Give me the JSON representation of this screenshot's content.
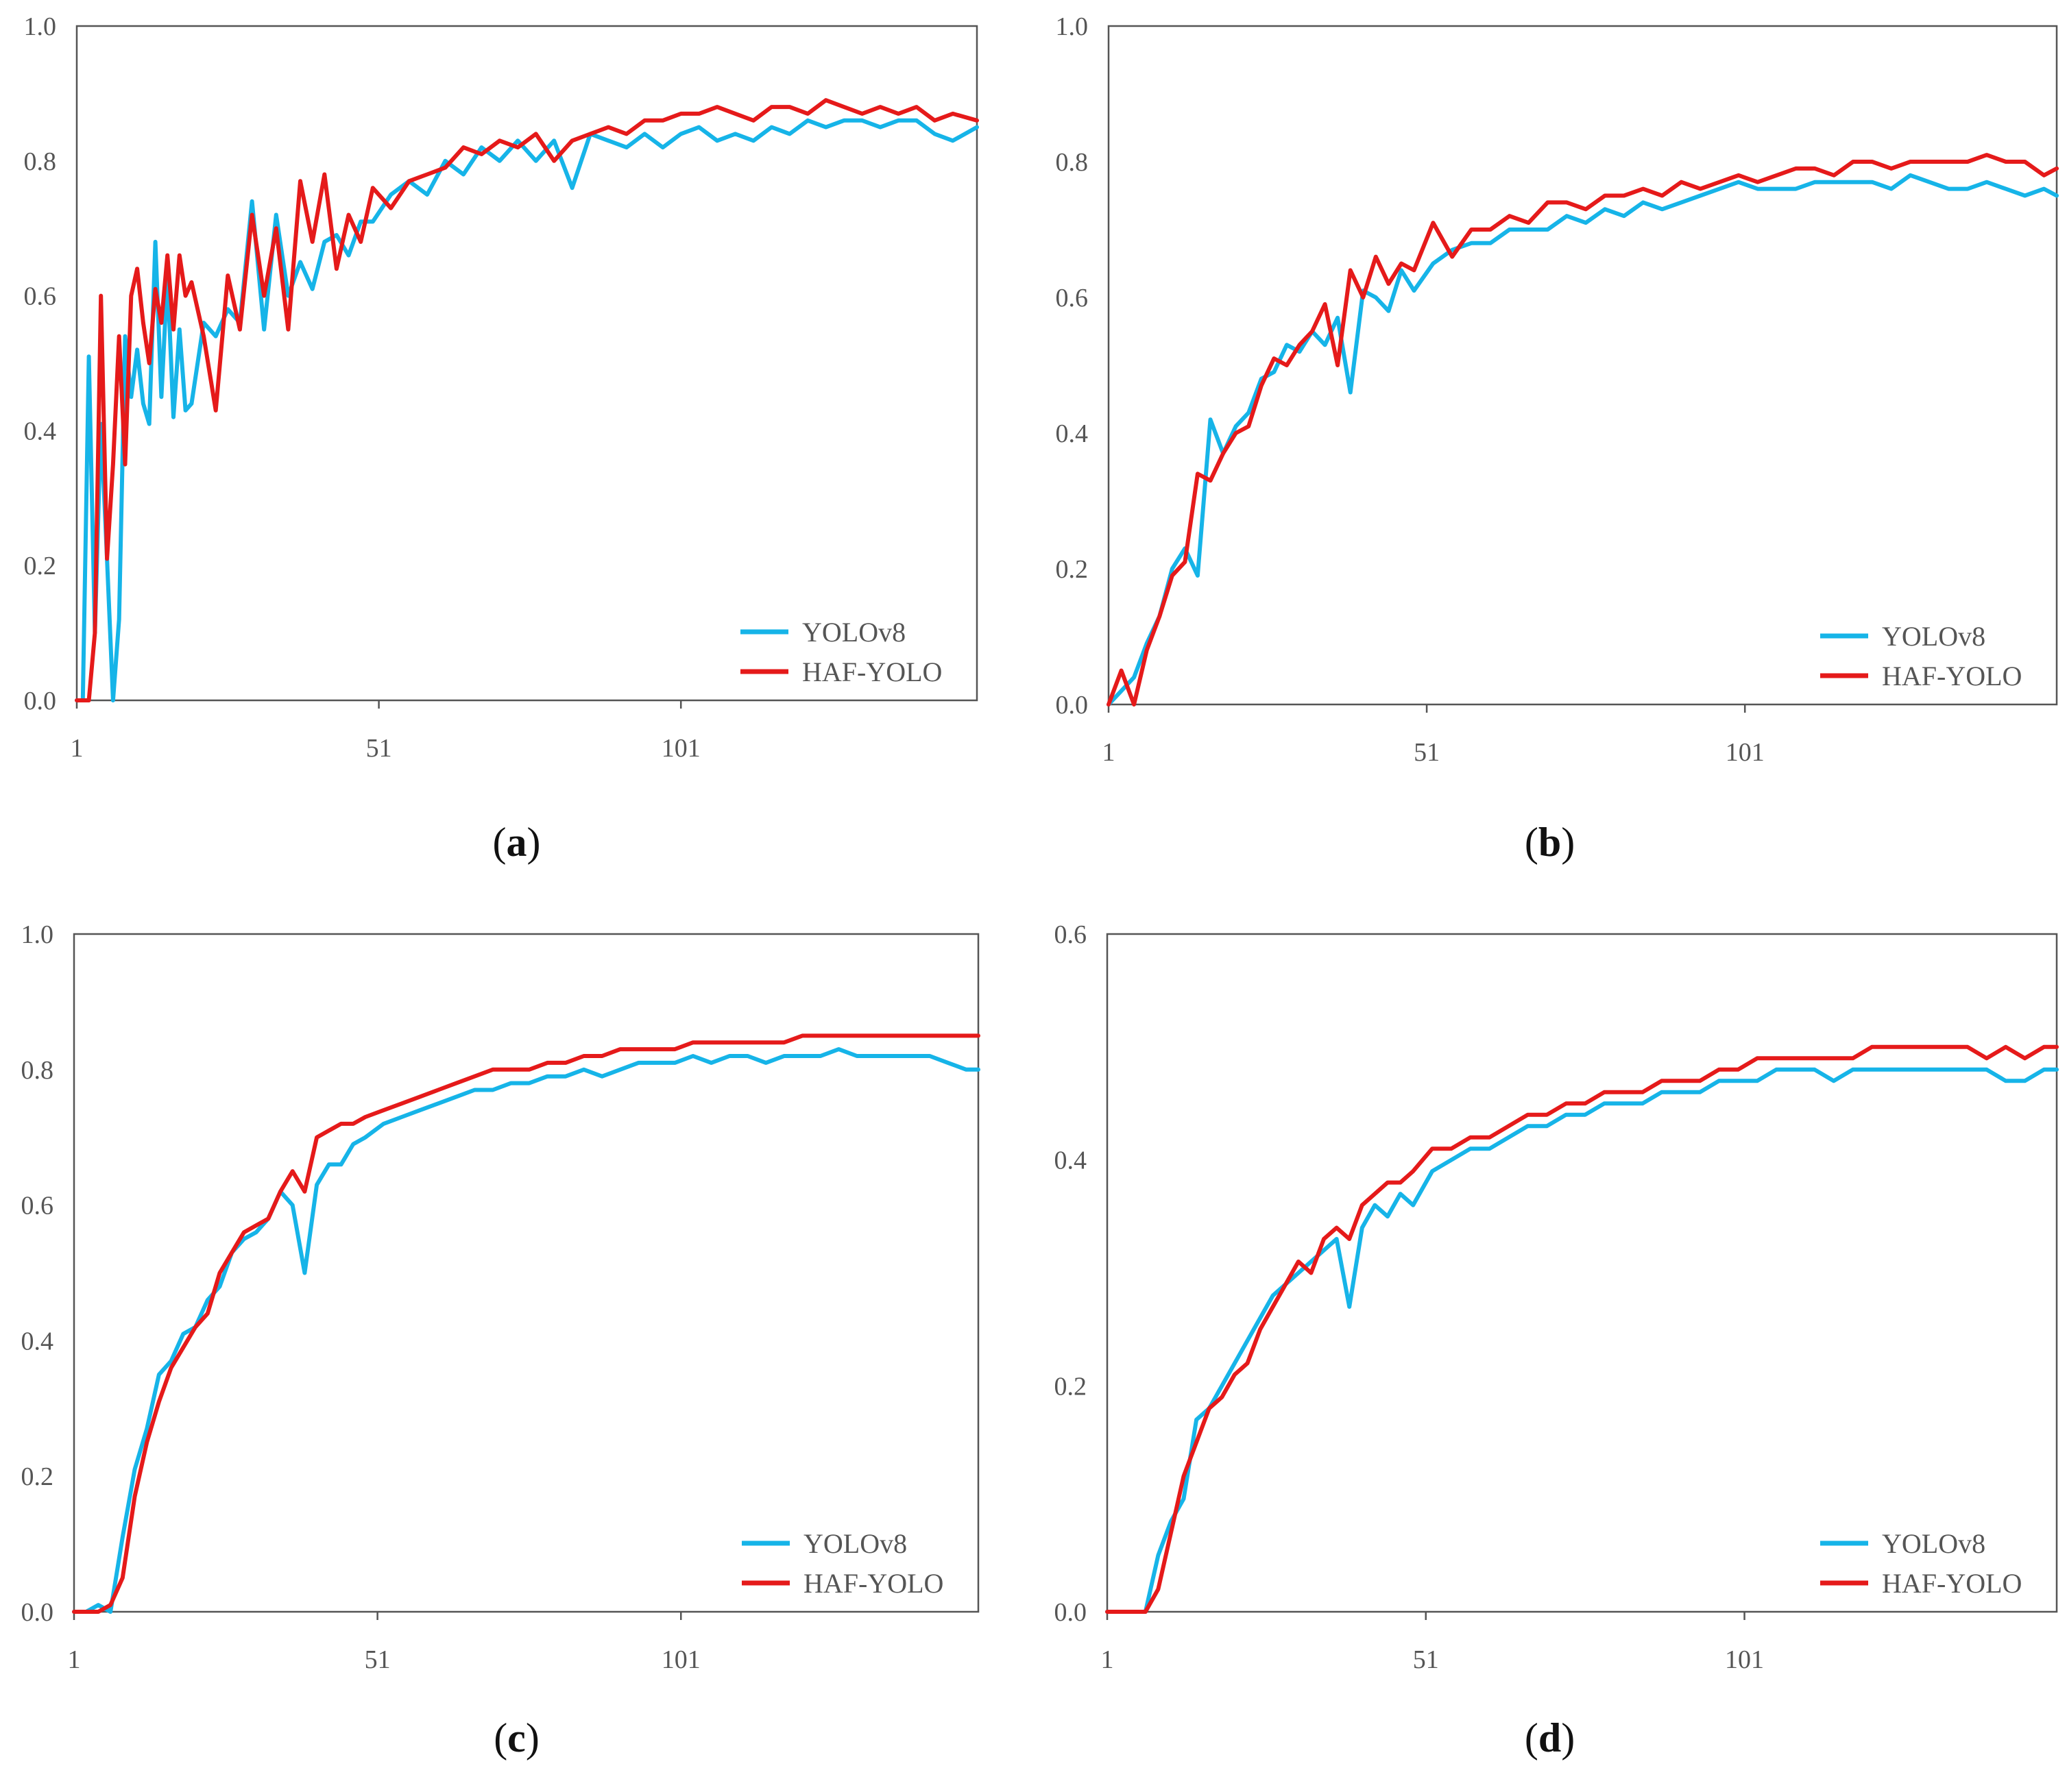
{
  "colors": {
    "yolov8": "#16B4E8",
    "haf_yolo": "#E51A1A",
    "axis": "#555555"
  },
  "chart_data": [
    {
      "id": "a",
      "type": "line",
      "caption_letter": "a",
      "ylim": [
        0,
        1.0
      ],
      "yticks": [
        "0.0",
        "0.2",
        "0.4",
        "0.6",
        "0.8",
        "1.0"
      ],
      "xlim": [
        1,
        150
      ],
      "xticks": [
        "1",
        "51",
        "101"
      ],
      "legend": {
        "position": "bottom-right",
        "labels": [
          "YOLOv8",
          "HAF-YOLO"
        ]
      },
      "series": [
        {
          "name": "YOLOv8",
          "color": "#16B4E8",
          "x": [
            1,
            2,
            3,
            4,
            5,
            6,
            7,
            8,
            9,
            10,
            11,
            12,
            13,
            14,
            15,
            16,
            17,
            18,
            19,
            20,
            22,
            24,
            26,
            28,
            30,
            32,
            34,
            36,
            38,
            40,
            42,
            44,
            46,
            48,
            50,
            53,
            56,
            59,
            62,
            65,
            68,
            71,
            74,
            77,
            80,
            83,
            86,
            89,
            92,
            95,
            98,
            101,
            104,
            107,
            110,
            113,
            116,
            119,
            122,
            125,
            128,
            131,
            134,
            137,
            140,
            143,
            146,
            150
          ],
          "values": [
            0.0,
            0.0,
            0.51,
            0.1,
            0.41,
            0.21,
            0.0,
            0.12,
            0.54,
            0.45,
            0.52,
            0.44,
            0.41,
            0.68,
            0.45,
            0.63,
            0.42,
            0.55,
            0.43,
            0.44,
            0.56,
            0.54,
            0.58,
            0.56,
            0.74,
            0.55,
            0.72,
            0.6,
            0.65,
            0.61,
            0.68,
            0.69,
            0.66,
            0.71,
            0.71,
            0.75,
            0.77,
            0.75,
            0.8,
            0.78,
            0.82,
            0.8,
            0.83,
            0.8,
            0.83,
            0.76,
            0.84,
            0.83,
            0.82,
            0.84,
            0.82,
            0.84,
            0.85,
            0.83,
            0.84,
            0.83,
            0.85,
            0.84,
            0.86,
            0.85,
            0.86,
            0.86,
            0.85,
            0.86,
            0.86,
            0.84,
            0.83,
            0.85
          ]
        },
        {
          "name": "HAF-YOLO",
          "color": "#E51A1A",
          "x": [
            1,
            2,
            3,
            4,
            5,
            6,
            7,
            8,
            9,
            10,
            11,
            12,
            13,
            14,
            15,
            16,
            17,
            18,
            19,
            20,
            22,
            24,
            26,
            28,
            30,
            32,
            34,
            36,
            38,
            40,
            42,
            44,
            46,
            48,
            50,
            53,
            56,
            59,
            62,
            65,
            68,
            71,
            74,
            77,
            80,
            83,
            86,
            89,
            92,
            95,
            98,
            101,
            104,
            107,
            110,
            113,
            116,
            119,
            122,
            125,
            128,
            131,
            134,
            137,
            140,
            143,
            146,
            150
          ],
          "values": [
            0.0,
            0.0,
            0.0,
            0.1,
            0.6,
            0.21,
            0.35,
            0.54,
            0.35,
            0.6,
            0.64,
            0.56,
            0.5,
            0.61,
            0.56,
            0.66,
            0.55,
            0.66,
            0.6,
            0.62,
            0.54,
            0.43,
            0.63,
            0.55,
            0.72,
            0.6,
            0.7,
            0.55,
            0.77,
            0.68,
            0.78,
            0.64,
            0.72,
            0.68,
            0.76,
            0.73,
            0.77,
            0.78,
            0.79,
            0.82,
            0.81,
            0.83,
            0.82,
            0.84,
            0.8,
            0.83,
            0.84,
            0.85,
            0.84,
            0.86,
            0.86,
            0.87,
            0.87,
            0.88,
            0.87,
            0.86,
            0.88,
            0.88,
            0.87,
            0.89,
            0.88,
            0.87,
            0.88,
            0.87,
            0.88,
            0.86,
            0.87,
            0.86
          ]
        }
      ]
    },
    {
      "id": "b",
      "type": "line",
      "caption_letter": "b",
      "ylim": [
        0,
        1.0
      ],
      "yticks": [
        "0.0",
        "0.2",
        "0.4",
        "0.6",
        "0.8",
        "1.0"
      ],
      "xlim": [
        1,
        150
      ],
      "xticks": [
        "1",
        "51",
        "101"
      ],
      "legend": {
        "position": "bottom-right",
        "labels": [
          "YOLOv8",
          "HAF-YOLO"
        ]
      },
      "series": [
        {
          "name": "YOLOv8",
          "color": "#16B4E8",
          "x": [
            1,
            3,
            5,
            7,
            9,
            11,
            13,
            15,
            17,
            19,
            21,
            23,
            25,
            27,
            29,
            31,
            33,
            35,
            37,
            39,
            41,
            43,
            45,
            47,
            49,
            52,
            55,
            58,
            61,
            64,
            67,
            70,
            73,
            76,
            79,
            82,
            85,
            88,
            91,
            94,
            97,
            100,
            103,
            106,
            109,
            112,
            115,
            118,
            121,
            124,
            127,
            130,
            133,
            136,
            139,
            142,
            145,
            148,
            150
          ],
          "values": [
            0.0,
            0.02,
            0.04,
            0.09,
            0.13,
            0.2,
            0.23,
            0.19,
            0.42,
            0.37,
            0.41,
            0.43,
            0.48,
            0.49,
            0.53,
            0.52,
            0.55,
            0.53,
            0.57,
            0.46,
            0.61,
            0.6,
            0.58,
            0.64,
            0.61,
            0.65,
            0.67,
            0.68,
            0.68,
            0.7,
            0.7,
            0.7,
            0.72,
            0.71,
            0.73,
            0.72,
            0.74,
            0.73,
            0.74,
            0.75,
            0.76,
            0.77,
            0.76,
            0.76,
            0.76,
            0.77,
            0.77,
            0.77,
            0.77,
            0.76,
            0.78,
            0.77,
            0.76,
            0.76,
            0.77,
            0.76,
            0.75,
            0.76,
            0.75
          ]
        },
        {
          "name": "HAF-YOLO",
          "color": "#E51A1A",
          "x": [
            1,
            3,
            5,
            7,
            9,
            11,
            13,
            15,
            17,
            19,
            21,
            23,
            25,
            27,
            29,
            31,
            33,
            35,
            37,
            39,
            41,
            43,
            45,
            47,
            49,
            52,
            55,
            58,
            61,
            64,
            67,
            70,
            73,
            76,
            79,
            82,
            85,
            88,
            91,
            94,
            97,
            100,
            103,
            106,
            109,
            112,
            115,
            118,
            121,
            124,
            127,
            130,
            133,
            136,
            139,
            142,
            145,
            148,
            150
          ],
          "values": [
            0.0,
            0.05,
            0.0,
            0.08,
            0.13,
            0.19,
            0.21,
            0.34,
            0.33,
            0.37,
            0.4,
            0.41,
            0.47,
            0.51,
            0.5,
            0.53,
            0.55,
            0.59,
            0.5,
            0.64,
            0.6,
            0.66,
            0.62,
            0.65,
            0.64,
            0.71,
            0.66,
            0.7,
            0.7,
            0.72,
            0.71,
            0.74,
            0.74,
            0.73,
            0.75,
            0.75,
            0.76,
            0.75,
            0.77,
            0.76,
            0.77,
            0.78,
            0.77,
            0.78,
            0.79,
            0.79,
            0.78,
            0.8,
            0.8,
            0.79,
            0.8,
            0.8,
            0.8,
            0.8,
            0.81,
            0.8,
            0.8,
            0.78,
            0.79
          ]
        }
      ]
    },
    {
      "id": "c",
      "type": "line",
      "caption_letter": "c",
      "ylim": [
        0,
        1.0
      ],
      "yticks": [
        "0.0",
        "0.2",
        "0.4",
        "0.6",
        "0.8",
        "1.0"
      ],
      "xlim": [
        1,
        150
      ],
      "xticks": [
        "1",
        "51",
        "101"
      ],
      "legend": {
        "position": "bottom-right",
        "labels": [
          "YOLOv8",
          "HAF-YOLO"
        ]
      },
      "series": [
        {
          "name": "YOLOv8",
          "color": "#16B4E8",
          "x": [
            1,
            3,
            5,
            7,
            9,
            11,
            13,
            15,
            17,
            19,
            21,
            23,
            25,
            27,
            29,
            31,
            33,
            35,
            37,
            39,
            41,
            43,
            45,
            47,
            49,
            52,
            55,
            58,
            61,
            64,
            67,
            70,
            73,
            76,
            79,
            82,
            85,
            88,
            91,
            94,
            97,
            100,
            103,
            106,
            109,
            112,
            115,
            118,
            121,
            124,
            127,
            130,
            133,
            136,
            139,
            142,
            145,
            148,
            150
          ],
          "values": [
            0.0,
            0.0,
            0.01,
            0.0,
            0.11,
            0.21,
            0.27,
            0.35,
            0.37,
            0.41,
            0.42,
            0.46,
            0.48,
            0.53,
            0.55,
            0.56,
            0.58,
            0.62,
            0.6,
            0.5,
            0.63,
            0.66,
            0.66,
            0.69,
            0.7,
            0.72,
            0.73,
            0.74,
            0.75,
            0.76,
            0.77,
            0.77,
            0.78,
            0.78,
            0.79,
            0.79,
            0.8,
            0.79,
            0.8,
            0.81,
            0.81,
            0.81,
            0.82,
            0.81,
            0.82,
            0.82,
            0.81,
            0.82,
            0.82,
            0.82,
            0.83,
            0.82,
            0.82,
            0.82,
            0.82,
            0.82,
            0.81,
            0.8,
            0.8
          ]
        },
        {
          "name": "HAF-YOLO",
          "color": "#E51A1A",
          "x": [
            1,
            3,
            5,
            7,
            9,
            11,
            13,
            15,
            17,
            19,
            21,
            23,
            25,
            27,
            29,
            31,
            33,
            35,
            37,
            39,
            41,
            43,
            45,
            47,
            49,
            52,
            55,
            58,
            61,
            64,
            67,
            70,
            73,
            76,
            79,
            82,
            85,
            88,
            91,
            94,
            97,
            100,
            103,
            106,
            109,
            112,
            115,
            118,
            121,
            124,
            127,
            130,
            133,
            136,
            139,
            142,
            145,
            148,
            150
          ],
          "values": [
            0.0,
            0.0,
            0.0,
            0.01,
            0.05,
            0.17,
            0.25,
            0.31,
            0.36,
            0.39,
            0.42,
            0.44,
            0.5,
            0.53,
            0.56,
            0.57,
            0.58,
            0.62,
            0.65,
            0.62,
            0.7,
            0.71,
            0.72,
            0.72,
            0.73,
            0.74,
            0.75,
            0.76,
            0.77,
            0.78,
            0.79,
            0.8,
            0.8,
            0.8,
            0.81,
            0.81,
            0.82,
            0.82,
            0.83,
            0.83,
            0.83,
            0.83,
            0.84,
            0.84,
            0.84,
            0.84,
            0.84,
            0.84,
            0.85,
            0.85,
            0.85,
            0.85,
            0.85,
            0.85,
            0.85,
            0.85,
            0.85,
            0.85,
            0.85
          ]
        }
      ]
    },
    {
      "id": "d",
      "type": "line",
      "caption_letter": "d",
      "ylim": [
        0,
        0.6
      ],
      "yticks": [
        "0.0",
        "0.2",
        "0.4",
        "0.6"
      ],
      "xlim": [
        1,
        150
      ],
      "xticks": [
        "1",
        "51",
        "101"
      ],
      "legend": {
        "position": "bottom-right",
        "labels": [
          "YOLOv8",
          "HAF-YOLO"
        ]
      },
      "series": [
        {
          "name": "YOLOv8",
          "color": "#16B4E8",
          "x": [
            1,
            3,
            5,
            7,
            9,
            11,
            13,
            15,
            17,
            19,
            21,
            23,
            25,
            27,
            29,
            31,
            33,
            35,
            37,
            39,
            41,
            43,
            45,
            47,
            49,
            52,
            55,
            58,
            61,
            64,
            67,
            70,
            73,
            76,
            79,
            82,
            85,
            88,
            91,
            94,
            97,
            100,
            103,
            106,
            109,
            112,
            115,
            118,
            121,
            124,
            127,
            130,
            133,
            136,
            139,
            142,
            145,
            148,
            150
          ],
          "values": [
            0.0,
            0.0,
            0.0,
            0.0,
            0.05,
            0.08,
            0.1,
            0.17,
            0.18,
            0.2,
            0.22,
            0.24,
            0.26,
            0.28,
            0.29,
            0.3,
            0.31,
            0.32,
            0.33,
            0.27,
            0.34,
            0.36,
            0.35,
            0.37,
            0.36,
            0.39,
            0.4,
            0.41,
            0.41,
            0.42,
            0.43,
            0.43,
            0.44,
            0.44,
            0.45,
            0.45,
            0.45,
            0.46,
            0.46,
            0.46,
            0.47,
            0.47,
            0.47,
            0.48,
            0.48,
            0.48,
            0.47,
            0.48,
            0.48,
            0.48,
            0.48,
            0.48,
            0.48,
            0.48,
            0.48,
            0.47,
            0.47,
            0.48,
            0.48
          ]
        },
        {
          "name": "HAF-YOLO",
          "color": "#E51A1A",
          "x": [
            1,
            3,
            5,
            7,
            9,
            11,
            13,
            15,
            17,
            19,
            21,
            23,
            25,
            27,
            29,
            31,
            33,
            35,
            37,
            39,
            41,
            43,
            45,
            47,
            49,
            52,
            55,
            58,
            61,
            64,
            67,
            70,
            73,
            76,
            79,
            82,
            85,
            88,
            91,
            94,
            97,
            100,
            103,
            106,
            109,
            112,
            115,
            118,
            121,
            124,
            127,
            130,
            133,
            136,
            139,
            142,
            145,
            148,
            150
          ],
          "values": [
            0.0,
            0.0,
            0.0,
            0.0,
            0.02,
            0.07,
            0.12,
            0.15,
            0.18,
            0.19,
            0.21,
            0.22,
            0.25,
            0.27,
            0.29,
            0.31,
            0.3,
            0.33,
            0.34,
            0.33,
            0.36,
            0.37,
            0.38,
            0.38,
            0.39,
            0.41,
            0.41,
            0.42,
            0.42,
            0.43,
            0.44,
            0.44,
            0.45,
            0.45,
            0.46,
            0.46,
            0.46,
            0.47,
            0.47,
            0.47,
            0.48,
            0.48,
            0.49,
            0.49,
            0.49,
            0.49,
            0.49,
            0.49,
            0.5,
            0.5,
            0.5,
            0.5,
            0.5,
            0.5,
            0.49,
            0.5,
            0.49,
            0.5,
            0.5
          ]
        }
      ]
    }
  ]
}
